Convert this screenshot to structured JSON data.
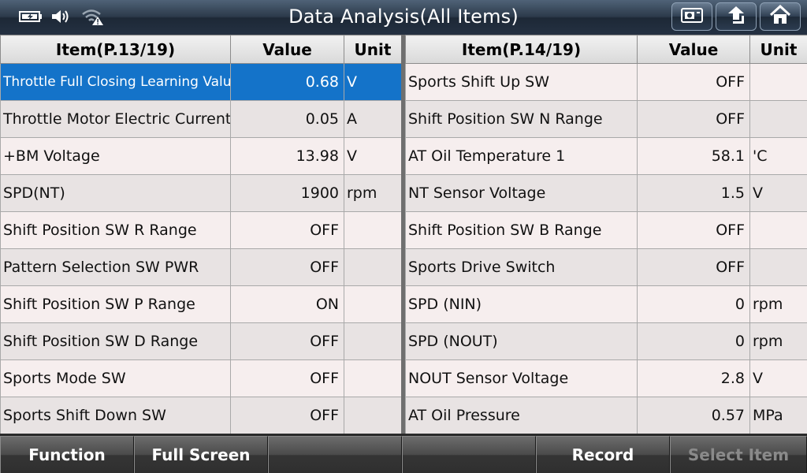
{
  "window": {
    "title": "Data Analysis(All Items)"
  },
  "status_icons": [
    "battery-icon",
    "volume-icon",
    "wifi-warning-icon"
  ],
  "top_buttons": [
    "screenshot-icon",
    "back-arrow-icon",
    "home-icon"
  ],
  "left_table": {
    "headers": {
      "item": "Item(P.13/19)",
      "value": "Value",
      "unit": "Unit"
    },
    "rows": [
      {
        "name": "Throttle Full Closing Learning Value",
        "value": "0.68",
        "unit": "V",
        "selected": true
      },
      {
        "name": "Throttle Motor Electric Current",
        "value": "0.05",
        "unit": "A"
      },
      {
        "name": "+BM Voltage",
        "value": "13.98",
        "unit": "V"
      },
      {
        "name": "SPD(NT)",
        "value": "1900",
        "unit": "rpm"
      },
      {
        "name": "Shift Position SW R Range",
        "value": "OFF",
        "unit": ""
      },
      {
        "name": "Pattern Selection SW PWR",
        "value": "OFF",
        "unit": ""
      },
      {
        "name": "Shift Position SW P Range",
        "value": "ON",
        "unit": ""
      },
      {
        "name": "Shift Position SW D Range",
        "value": "OFF",
        "unit": ""
      },
      {
        "name": "Sports Mode SW",
        "value": "OFF",
        "unit": ""
      },
      {
        "name": "Sports Shift Down SW",
        "value": "OFF",
        "unit": ""
      }
    ]
  },
  "right_table": {
    "headers": {
      "item": "Item(P.14/19)",
      "value": "Value",
      "unit": "Unit"
    },
    "rows": [
      {
        "name": "Sports Shift Up SW",
        "value": "OFF",
        "unit": ""
      },
      {
        "name": "Shift Position SW N Range",
        "value": "OFF",
        "unit": ""
      },
      {
        "name": "AT Oil Temperature 1",
        "value": "58.1",
        "unit": "'C"
      },
      {
        "name": "NT Sensor Voltage",
        "value": "1.5",
        "unit": "V"
      },
      {
        "name": "Shift Position SW B Range",
        "value": "OFF",
        "unit": ""
      },
      {
        "name": "Sports Drive Switch",
        "value": "OFF",
        "unit": ""
      },
      {
        "name": "SPD (NIN)",
        "value": "0",
        "unit": "rpm"
      },
      {
        "name": "SPD (NOUT)",
        "value": "0",
        "unit": "rpm"
      },
      {
        "name": "NOUT Sensor Voltage",
        "value": "2.8",
        "unit": "V"
      },
      {
        "name": "AT Oil Pressure",
        "value": "0.57",
        "unit": "MPa"
      }
    ]
  },
  "bottom_bar": {
    "buttons": [
      {
        "label": "Function",
        "enabled": true
      },
      {
        "label": "Full Screen",
        "enabled": true
      },
      {
        "label": "",
        "enabled": true
      },
      {
        "label": "",
        "enabled": true
      },
      {
        "label": "Record",
        "enabled": true
      },
      {
        "label": "Select Item",
        "enabled": false
      }
    ]
  },
  "colors": {
    "selected_row": "#1473c9",
    "topbar": "#2c3a4a"
  }
}
